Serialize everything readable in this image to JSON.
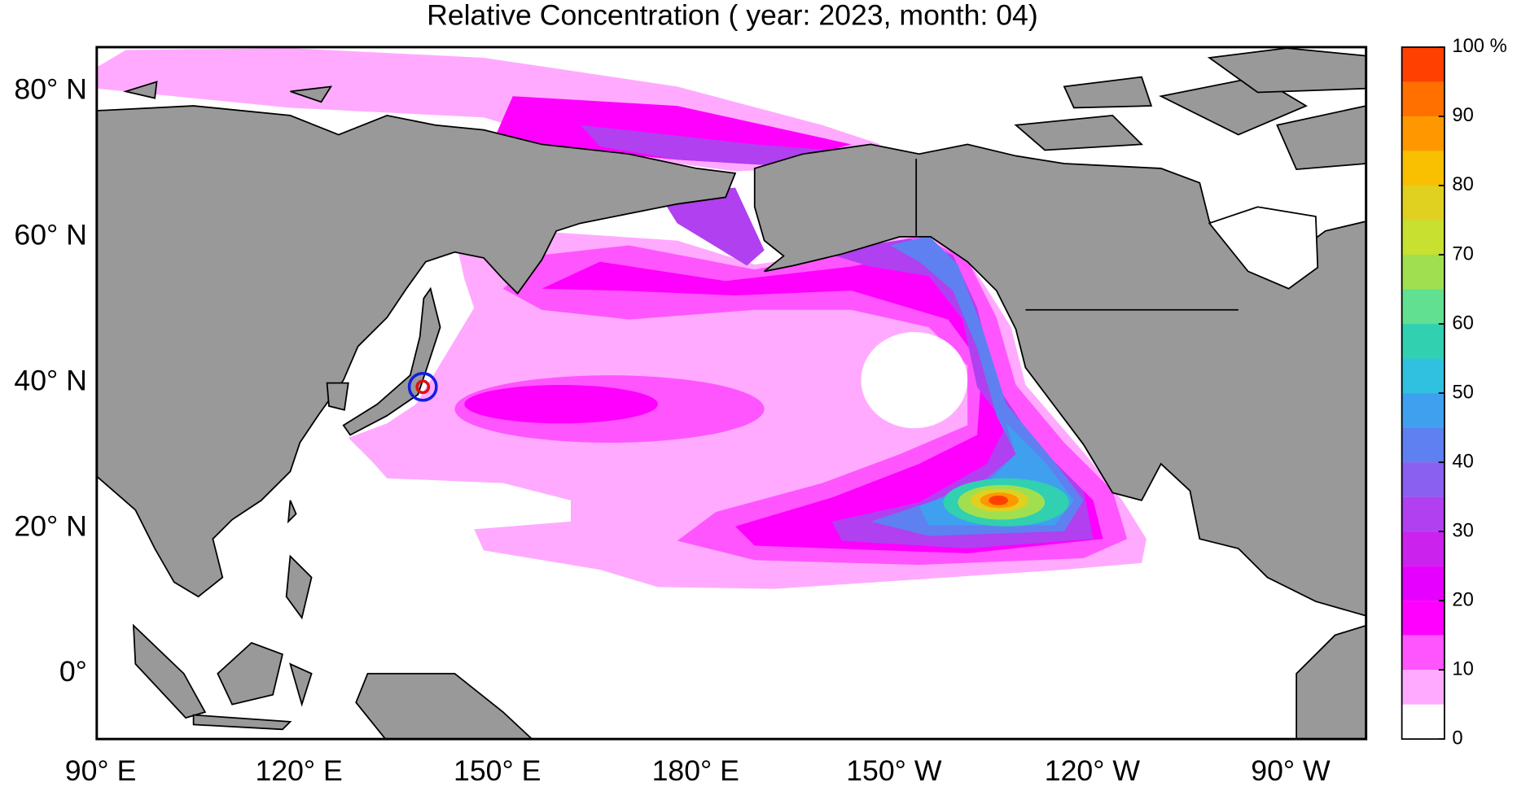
{
  "title": "Relative Concentration ( year: 2023, month: 04)",
  "lat_labels": [
    "80° N",
    "60° N",
    "40° N",
    "20° N",
    "0°"
  ],
  "lon_labels": [
    "90° E",
    "120° E",
    "150° E",
    "180° E",
    "150° W",
    "120° W",
    "90° W"
  ],
  "colorbar": {
    "range": [
      0,
      100
    ],
    "ticks": [
      0,
      10,
      20,
      30,
      40,
      50,
      60,
      70,
      80,
      90,
      {
        "value": 100,
        "label": "100 %"
      }
    ],
    "colors": [
      "#ffffff",
      "#ffaaff",
      "#ff55ff",
      "#ff00ff",
      "#e600ff",
      "#cc22ee",
      "#b040f0",
      "#8a60f0",
      "#5f80f0",
      "#40a0f0",
      "#30c0e0",
      "#30d0b0",
      "#60e090",
      "#a0e050",
      "#c8e030",
      "#e0d020",
      "#f8c000",
      "#ff9800",
      "#ff7000",
      "#ff4000"
    ]
  }
}
